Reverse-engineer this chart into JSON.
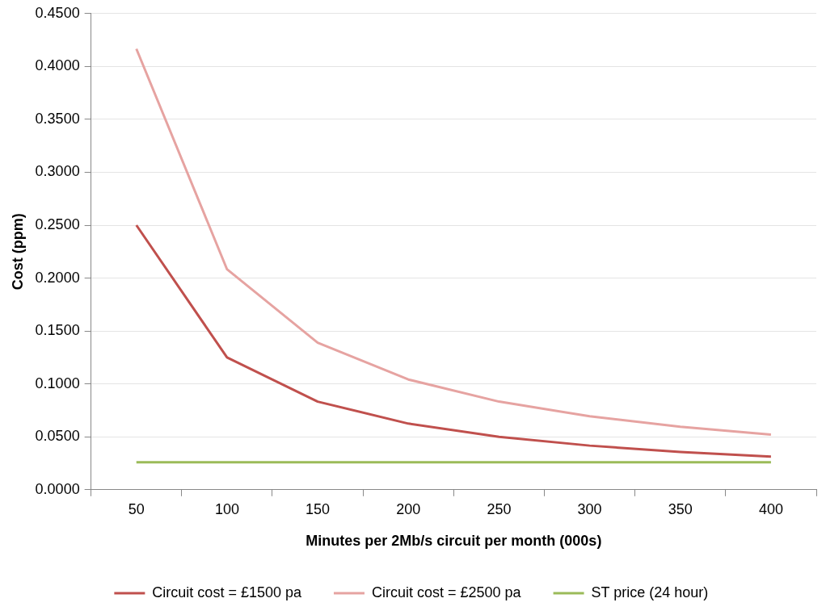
{
  "chart_data": {
    "type": "line",
    "xlabel": "Minutes per 2Mb/s circuit per month (000s)",
    "ylabel": "Cost (ppm)",
    "categories": [
      "50",
      "100",
      "150",
      "200",
      "250",
      "300",
      "350",
      "400"
    ],
    "series": [
      {
        "name": "Circuit cost = £1500 pa",
        "color": "#c0504d",
        "values": [
          0.25,
          0.125,
          0.0833,
          0.0625,
          0.05,
          0.0417,
          0.0357,
          0.0313
        ]
      },
      {
        "name": "Circuit cost = £2500 pa",
        "color": "#e6a3a1",
        "values": [
          0.4167,
          0.2083,
          0.1389,
          0.1042,
          0.0833,
          0.0694,
          0.0595,
          0.0521
        ]
      },
      {
        "name": "ST price (24 hour)",
        "color": "#9bbb59",
        "values": [
          0.026,
          0.026,
          0.026,
          0.026,
          0.026,
          0.026,
          0.026,
          0.026
        ]
      }
    ],
    "ylim": [
      0,
      0.45
    ],
    "yticks": [
      {
        "value": 0,
        "label": "0.0000"
      },
      {
        "value": 0.05,
        "label": "0.0500"
      },
      {
        "value": 0.1,
        "label": "0.1000"
      },
      {
        "value": 0.15,
        "label": "0.1500"
      },
      {
        "value": 0.2,
        "label": "0.2000"
      },
      {
        "value": 0.25,
        "label": "0.2500"
      },
      {
        "value": 0.3,
        "label": "0.3000"
      },
      {
        "value": 0.35,
        "label": "0.3500"
      },
      {
        "value": 0.4,
        "label": "0.4000"
      },
      {
        "value": 0.45,
        "label": "0.4500"
      }
    ],
    "grid": "y",
    "legend": "bottom",
    "marker": "none",
    "line_style": "solid"
  }
}
